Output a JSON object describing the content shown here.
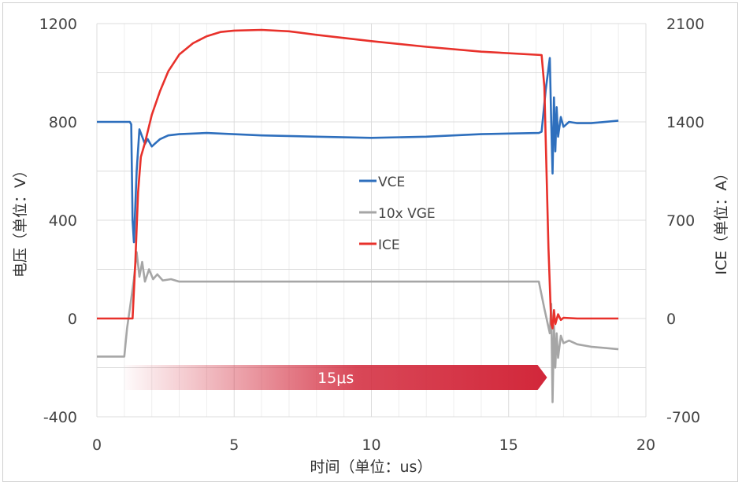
{
  "chart_data": {
    "type": "line",
    "title": "",
    "xlabel": "时间（单位：us）",
    "ylabel": "电压（单位：V）",
    "y2label": "ICE（单位：A）",
    "xlim": [
      0,
      20
    ],
    "ylim": [
      -400,
      1200
    ],
    "y2lim": [
      -700,
      2100
    ],
    "xticks": [
      "0",
      "5",
      "10",
      "15",
      "20"
    ],
    "yticks": [
      "1200",
      "800",
      "400",
      "0",
      "-400"
    ],
    "y2ticks": [
      "2100",
      "1400",
      "700",
      "0",
      "-700"
    ],
    "grid": true,
    "legend_position": "center",
    "series": [
      {
        "name": "VCE",
        "axis": "left",
        "color": "#2e6fbd",
        "x": [
          0,
          1.2,
          1.25,
          1.3,
          1.35,
          1.45,
          1.55,
          1.65,
          1.75,
          1.85,
          2.0,
          2.1,
          2.3,
          2.6,
          3,
          4,
          6,
          8,
          10,
          12,
          14,
          16.1,
          16.2,
          16.35,
          16.5,
          16.55,
          16.6,
          16.65,
          16.7,
          16.75,
          16.8,
          16.9,
          17.0,
          17.2,
          17.5,
          18,
          19
        ],
        "y": [
          800,
          800,
          790,
          400,
          310,
          600,
          770,
          740,
          710,
          730,
          700,
          710,
          730,
          745,
          750,
          755,
          745,
          740,
          735,
          740,
          750,
          755,
          760,
          930,
          1060,
          800,
          590,
          900,
          680,
          860,
          740,
          820,
          780,
          800,
          795,
          795,
          805
        ]
      },
      {
        "name": "10x VGE",
        "axis": "left",
        "color": "#a6a6a6",
        "x": [
          0,
          1.0,
          1.1,
          1.25,
          1.35,
          1.45,
          1.55,
          1.65,
          1.75,
          1.9,
          2.05,
          2.2,
          2.4,
          2.7,
          3,
          5,
          10,
          16.1,
          16.3,
          16.5,
          16.55,
          16.6,
          16.65,
          16.7,
          16.75,
          16.8,
          16.9,
          17.0,
          17.2,
          17.5,
          18,
          19
        ],
        "y": [
          -155,
          -155,
          -40,
          80,
          160,
          270,
          170,
          230,
          150,
          200,
          160,
          180,
          155,
          160,
          150,
          150,
          150,
          150,
          40,
          -60,
          60,
          -340,
          -30,
          -200,
          -60,
          -160,
          -70,
          -100,
          -90,
          -105,
          -115,
          -125
        ]
      },
      {
        "name": "ICE",
        "axis": "right",
        "color": "#e8312b",
        "x": [
          0,
          1.2,
          1.3,
          1.4,
          1.5,
          1.6,
          1.75,
          2.0,
          2.3,
          2.6,
          3,
          3.5,
          4,
          4.5,
          5,
          6,
          7,
          8,
          10,
          12,
          14,
          16.2,
          16.3,
          16.45,
          16.55,
          16.6,
          16.65,
          16.7,
          16.8,
          16.9,
          17.0,
          17.5,
          19
        ],
        "y": [
          0,
          0,
          0,
          400,
          900,
          1150,
          1250,
          1450,
          1620,
          1760,
          1880,
          1960,
          2010,
          2040,
          2050,
          2055,
          2045,
          2020,
          1975,
          1935,
          1900,
          1876,
          1650,
          500,
          -40,
          -70,
          60,
          -40,
          30,
          -10,
          5,
          0,
          0
        ]
      }
    ],
    "annotations": [
      {
        "text": "15μs",
        "type": "arrow",
        "x_start": 1.0,
        "x_end": 16.4,
        "y_center": -240,
        "color": "#d2273a"
      }
    ]
  }
}
